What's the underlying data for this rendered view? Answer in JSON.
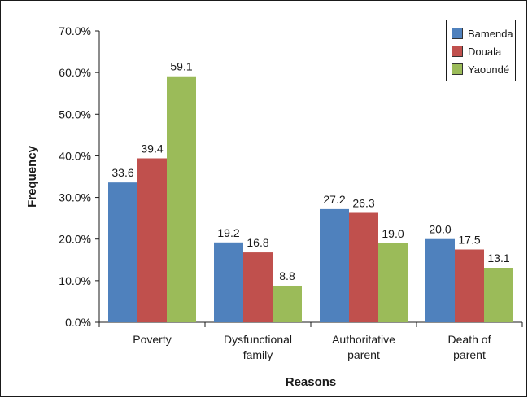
{
  "chart_data": {
    "type": "bar",
    "categories": [
      [
        "Poverty"
      ],
      [
        "Dysfunctional",
        "family"
      ],
      [
        "Authoritative",
        "parent"
      ],
      [
        "Death of",
        "parent"
      ]
    ],
    "series": [
      {
        "name": "Bamenda",
        "color": "#4F81BD",
        "values": [
          33.6,
          19.2,
          27.2,
          20.0
        ],
        "labels": [
          "33.6",
          "19.2",
          "27.2",
          "20.0"
        ]
      },
      {
        "name": "Douala",
        "color": "#C0504D",
        "values": [
          39.4,
          16.8,
          26.3,
          17.5
        ],
        "labels": [
          "39.4",
          "16.8",
          "26.3",
          "17.5"
        ]
      },
      {
        "name": "Yaoundé",
        "color": "#9BBB59",
        "values": [
          59.1,
          8.8,
          19.0,
          13.1
        ],
        "labels": [
          "59.1",
          "8.8",
          "19.0",
          "13.1"
        ]
      }
    ],
    "xlabel": "Reasons",
    "ylabel": "Frequency",
    "ylim": [
      0,
      70
    ],
    "yticks": [
      0,
      10,
      20,
      30,
      40,
      50,
      60,
      70
    ],
    "ytick_labels": [
      "0.0%",
      "10.0%",
      "20.0%",
      "30.0%",
      "40.0%",
      "50.0%",
      "60.0%",
      "70.0%"
    ],
    "grid": false,
    "legend_position": "top-right"
  }
}
